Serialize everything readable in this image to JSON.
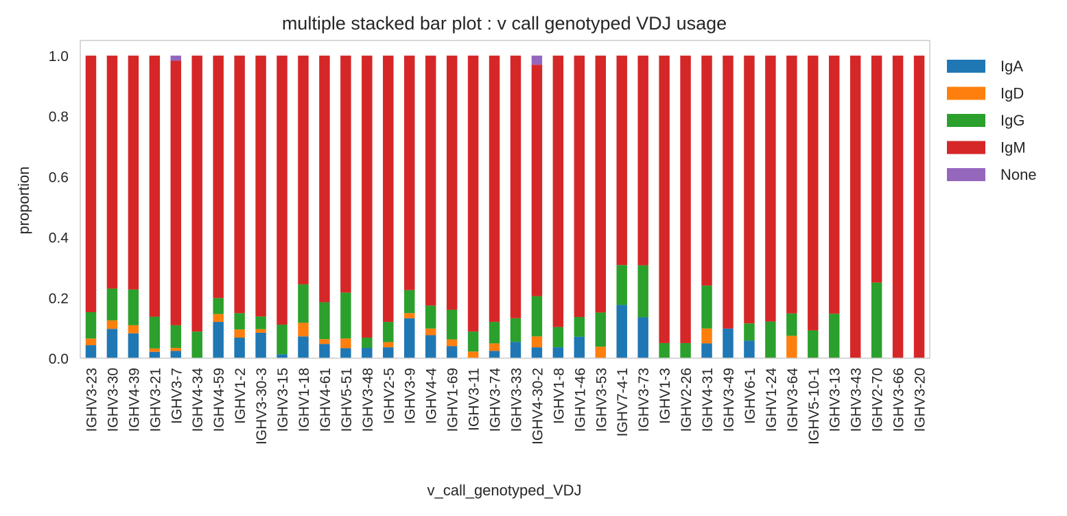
{
  "chart_data": {
    "type": "bar",
    "stacked": true,
    "title": "multiple stacked bar plot : v call genotyped VDJ usage",
    "xlabel": "v_call_genotyped_VDJ",
    "ylabel": "proportion",
    "ylim": [
      0,
      1.05
    ],
    "yticks": [
      "0.0",
      "0.2",
      "0.4",
      "0.6",
      "0.8",
      "1.0"
    ],
    "grid": false,
    "legend": "right, outside",
    "categories": [
      "IGHV3-23",
      "IGHV3-30",
      "IGHV4-39",
      "IGHV3-21",
      "IGHV3-7",
      "IGHV4-34",
      "IGHV4-59",
      "IGHV1-2",
      "IGHV3-30-3",
      "IGHV3-15",
      "IGHV1-18",
      "IGHV4-61",
      "IGHV5-51",
      "IGHV3-48",
      "IGHV2-5",
      "IGHV3-9",
      "IGHV4-4",
      "IGHV1-69",
      "IGHV3-11",
      "IGHV3-74",
      "IGHV3-33",
      "IGHV4-30-2",
      "IGHV1-8",
      "IGHV1-46",
      "IGHV3-53",
      "IGHV7-4-1",
      "IGHV3-73",
      "IGHV1-3",
      "IGHV2-26",
      "IGHV4-31",
      "IGHV3-49",
      "IGHV6-1",
      "IGHV1-24",
      "IGHV3-64",
      "IGHV5-10-1",
      "IGHV3-13",
      "IGHV3-43",
      "IGHV2-70",
      "IGHV3-66",
      "IGHV3-20"
    ],
    "series": [
      {
        "name": "IgA",
        "color": "#1f77b4",
        "values": [
          0.043,
          0.097,
          0.082,
          0.021,
          0.024,
          0.0,
          0.12,
          0.068,
          0.084,
          0.013,
          0.072,
          0.047,
          0.033,
          0.034,
          0.036,
          0.132,
          0.076,
          0.04,
          0.0,
          0.024,
          0.054,
          0.036,
          0.036,
          0.071,
          0.0,
          0.176,
          0.135,
          0.0,
          0.0,
          0.049,
          0.098,
          0.058,
          0.0,
          0.0,
          0.0,
          0.0,
          0.0,
          0.0,
          0.0,
          0.0
        ]
      },
      {
        "name": "IgD",
        "color": "#ff7f0e",
        "values": [
          0.022,
          0.028,
          0.027,
          0.011,
          0.01,
          0.0,
          0.026,
          0.027,
          0.012,
          0.0,
          0.045,
          0.016,
          0.032,
          0.0,
          0.017,
          0.017,
          0.022,
          0.022,
          0.022,
          0.025,
          0.0,
          0.036,
          0.0,
          0.0,
          0.038,
          0.0,
          0.0,
          0.0,
          0.0,
          0.049,
          0.0,
          0.0,
          0.0,
          0.074,
          0.0,
          0.0,
          0.0,
          0.0,
          0.0,
          0.0
        ]
      },
      {
        "name": "IgG",
        "color": "#2ca02c",
        "values": [
          0.087,
          0.105,
          0.118,
          0.105,
          0.075,
          0.088,
          0.053,
          0.054,
          0.042,
          0.098,
          0.127,
          0.122,
          0.152,
          0.034,
          0.067,
          0.076,
          0.076,
          0.098,
          0.066,
          0.071,
          0.078,
          0.133,
          0.067,
          0.065,
          0.113,
          0.132,
          0.172,
          0.05,
          0.05,
          0.142,
          0.0,
          0.057,
          0.121,
          0.074,
          0.092,
          0.147,
          0.0,
          0.25,
          0.0,
          0.0
        ]
      },
      {
        "name": "IgM",
        "color": "#d62728",
        "values": [
          0.848,
          0.77,
          0.773,
          0.863,
          0.874,
          0.912,
          0.801,
          0.851,
          0.862,
          0.889,
          0.756,
          0.815,
          0.783,
          0.932,
          0.88,
          0.775,
          0.826,
          0.84,
          0.912,
          0.88,
          0.868,
          0.765,
          0.897,
          0.864,
          0.849,
          0.692,
          0.693,
          0.95,
          0.95,
          0.76,
          0.902,
          0.885,
          0.879,
          0.852,
          0.908,
          0.853,
          1.0,
          0.75,
          1.0,
          1.0
        ]
      },
      {
        "name": "None",
        "color": "#9467bd",
        "values": [
          0,
          0,
          0,
          0,
          0.017,
          0,
          0,
          0,
          0,
          0,
          0,
          0,
          0,
          0,
          0,
          0,
          0,
          0,
          0,
          0,
          0,
          0.03,
          0,
          0,
          0,
          0,
          0,
          0,
          0,
          0,
          0,
          0,
          0,
          0,
          0,
          0,
          0,
          0,
          0,
          0
        ]
      }
    ]
  }
}
